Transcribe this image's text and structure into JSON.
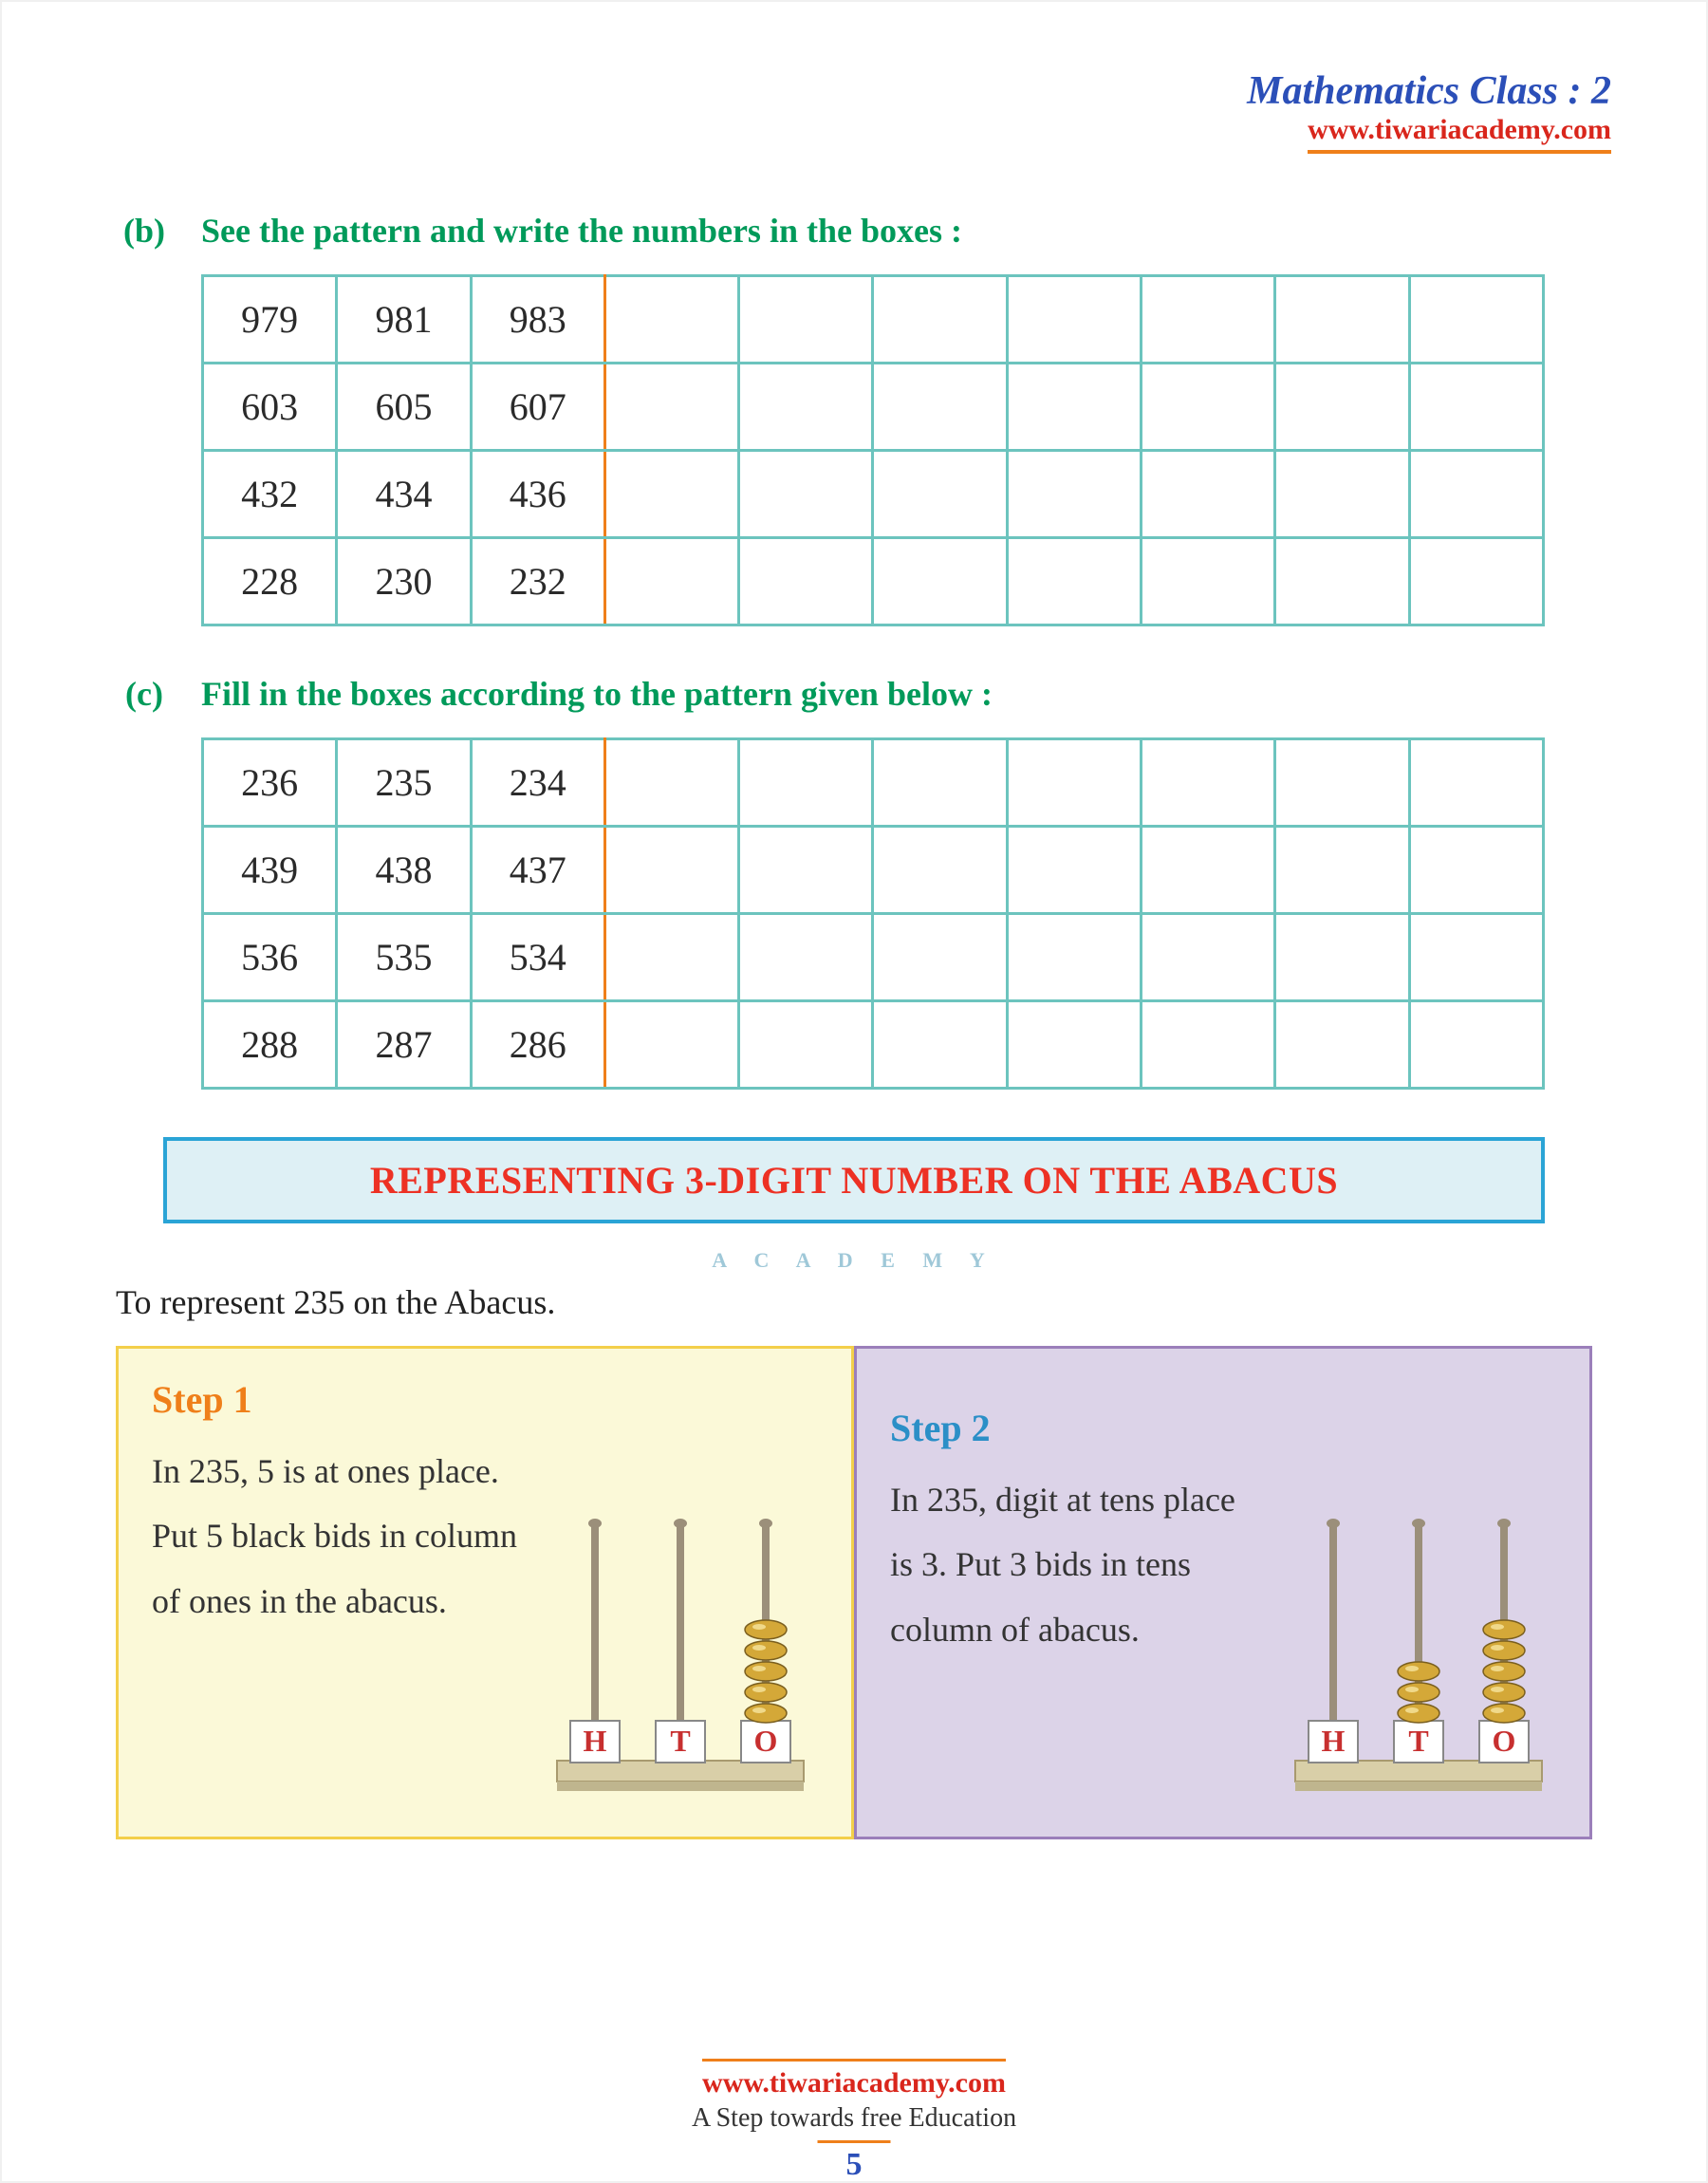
{
  "header": {
    "title": "Mathematics Class : 2",
    "url": "www.tiwariacademy.com",
    "title_color": "#2b4fb8",
    "url_color": "#d9261c",
    "underline_color": "#ef7f1a"
  },
  "question_b": {
    "label": "(b)",
    "text": "See the pattern and write the numbers in the boxes :",
    "color": "#009a5a",
    "columns": 10,
    "rows": [
      [
        "979",
        "981",
        "983",
        "",
        "",
        "",
        "",
        "",
        "",
        ""
      ],
      [
        "603",
        "605",
        "607",
        "",
        "",
        "",
        "",
        "",
        "",
        ""
      ],
      [
        "432",
        "434",
        "436",
        "",
        "",
        "",
        "",
        "",
        "",
        ""
      ],
      [
        "228",
        "230",
        "232",
        "",
        "",
        "",
        "",
        "",
        "",
        ""
      ]
    ],
    "border_color": "#6cc4be",
    "separator_color": "#ef7f1a",
    "text_fontsize": 40
  },
  "question_c": {
    "label": "(c)",
    "text": "Fill in the boxes according to the pattern given below :",
    "color": "#009a5a",
    "columns": 10,
    "rows": [
      [
        "236",
        "235",
        "234",
        "",
        "",
        "",
        "",
        "",
        "",
        ""
      ],
      [
        "439",
        "438",
        "437",
        "",
        "",
        "",
        "",
        "",
        "",
        ""
      ],
      [
        "536",
        "535",
        "534",
        "",
        "",
        "",
        "",
        "",
        "",
        ""
      ],
      [
        "288",
        "287",
        "286",
        "",
        "",
        "",
        "",
        "",
        "",
        ""
      ]
    ],
    "border_color": "#6cc4be",
    "separator_color": "#ef7f1a"
  },
  "section": {
    "title": "REPRESENTING 3-DIGIT NUMBER ON THE ABACUS",
    "title_color": "#ed3124",
    "bg_color": "#def0f5",
    "border_color": "#2aa4d6",
    "watermark": "A C A D E M Y",
    "watermark_color": "#9fc8d8"
  },
  "intro": "To represent 235 on the Abacus.",
  "step1": {
    "title": "Step 1",
    "title_color": "#ef7f1a",
    "body": "In 235, 5 is at ones place. Put 5 black bids in column of ones in the abacus.",
    "bg_color": "#fbf9d8",
    "border_color": "#f3cf4a",
    "abacus": {
      "labels": [
        "H",
        "T",
        "O"
      ],
      "beads": [
        0,
        0,
        5
      ],
      "bead_color": "#d4a838",
      "rod_color": "#9b8f7a",
      "base_color": "#d9cfa8",
      "label_bg": "#ffffff",
      "label_color": "#c72f2f"
    }
  },
  "step2": {
    "title": "Step 2",
    "title_color": "#2b8fc7",
    "body": "In 235, digit at tens place is 3. Put 3 bids  in tens column of abacus.",
    "bg_color": "#dcd3e8",
    "border_color": "#9b7fba",
    "abacus": {
      "labels": [
        "H",
        "T",
        "O"
      ],
      "beads": [
        0,
        3,
        5
      ],
      "bead_color": "#d4a838",
      "rod_color": "#9b8f7a",
      "base_color": "#d9cfa8",
      "label_bg": "#ffffff",
      "label_color": "#c72f2f"
    }
  },
  "footer": {
    "url": "www.tiwariacademy.com",
    "tagline": "A Step towards free Education",
    "page": "5",
    "url_color": "#d9261c",
    "page_color": "#2b4fb8"
  }
}
